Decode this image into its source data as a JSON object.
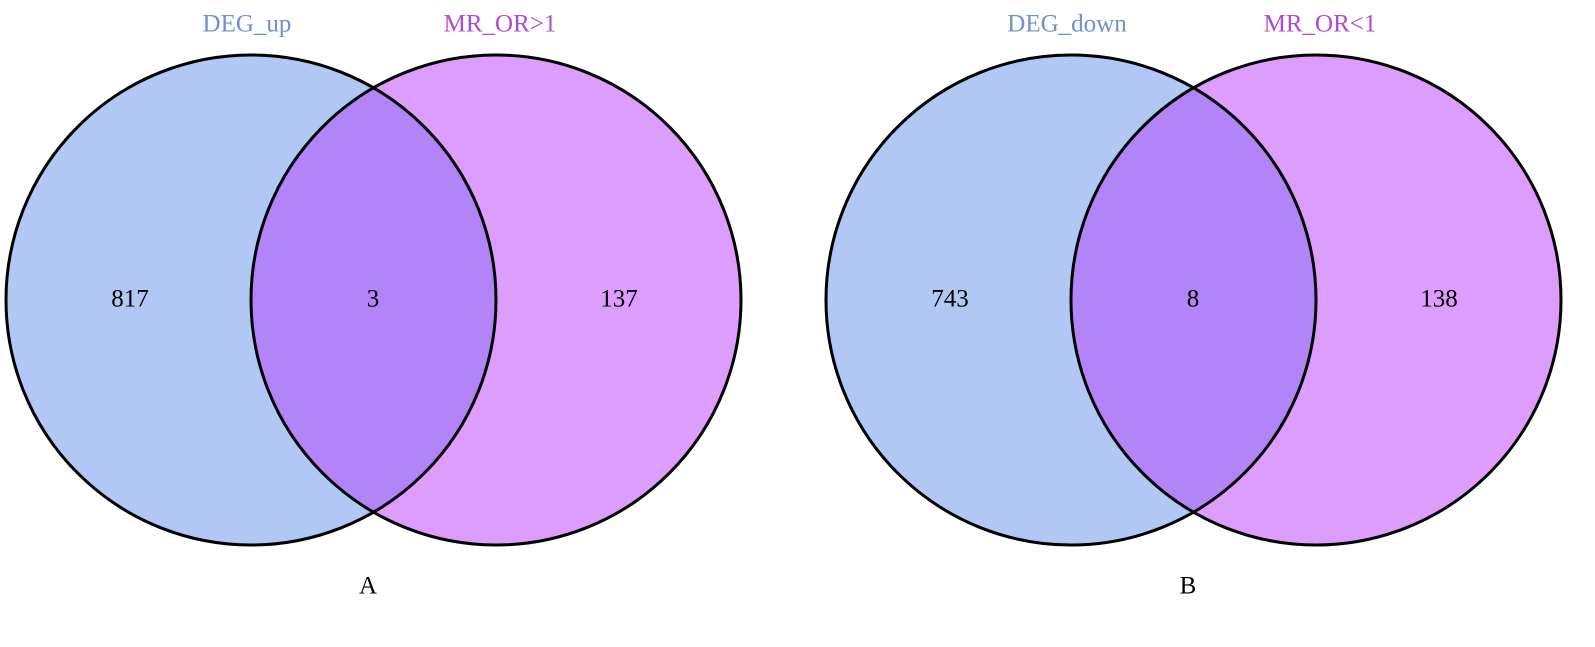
{
  "chart_data": [
    {
      "type": "venn",
      "label": "A",
      "sets": [
        {
          "name": "DEG_up",
          "color": "#b1c8f4",
          "label_color": "#7090d0"
        },
        {
          "name": "MR_OR>1",
          "color": "#dc9dfd",
          "label_color": "#b04ad0"
        }
      ],
      "overlap_color": "#b384f8",
      "values": [
        817,
        3,
        137
      ]
    },
    {
      "type": "venn",
      "label": "B",
      "sets": [
        {
          "name": "DEG_down",
          "color": "#b1c8f4",
          "label_color": "#7090d0"
        },
        {
          "name": "MR_OR<1",
          "color": "#dc9dfd",
          "label_color": "#b04ad0"
        }
      ],
      "overlap_color": "#b384f8",
      "values": [
        743,
        8,
        138
      ]
    }
  ]
}
